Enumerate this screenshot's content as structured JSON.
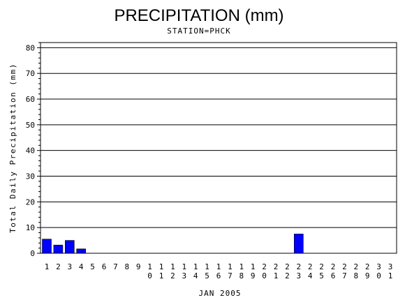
{
  "chart_data": {
    "type": "bar",
    "title": "PRECIPITATION (mm)",
    "subtitle": "STATION=PHCK",
    "xlabel": "JAN 2005",
    "ylabel": "Total Daily Precipitation (mm)",
    "ylim": [
      0,
      82
    ],
    "yticks": [
      0,
      10,
      20,
      30,
      40,
      50,
      60,
      70,
      80
    ],
    "grid": true,
    "bar_color": "#0000ff",
    "categories": [
      "1",
      "2",
      "3",
      "4",
      "5",
      "6",
      "7",
      "8",
      "9",
      "10",
      "11",
      "12",
      "13",
      "14",
      "15",
      "16",
      "17",
      "18",
      "19",
      "20",
      "21",
      "22",
      "23",
      "24",
      "25",
      "26",
      "27",
      "28",
      "29",
      "30",
      "31"
    ],
    "values": [
      5.5,
      3.2,
      5.0,
      1.7,
      0,
      0,
      0,
      0,
      0,
      0,
      0,
      0,
      0,
      0,
      0,
      0,
      0,
      0,
      0,
      0,
      0,
      0,
      7.5,
      0,
      0,
      0,
      0,
      0,
      0,
      0,
      0
    ]
  }
}
